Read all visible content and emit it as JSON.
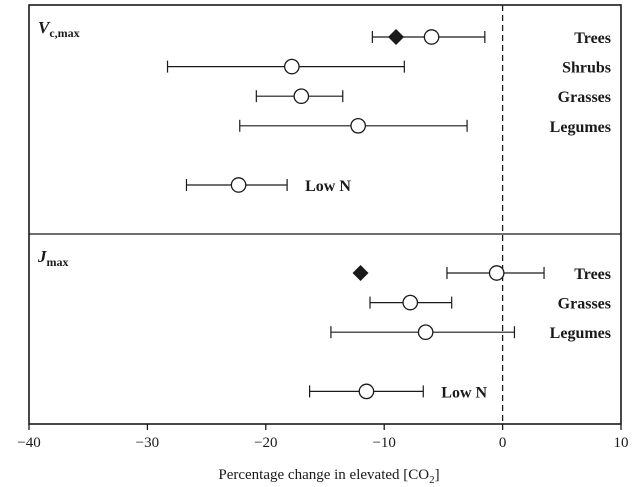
{
  "chart_data": {
    "type": "scatter",
    "subtype": "forest-plot",
    "xlabel": "Percentage change in elevated [CO",
    "xlabel_sub": "2",
    "xlabel_end": "]",
    "xlim": [
      -40,
      10
    ],
    "xticks": [
      -40,
      -30,
      -20,
      -10,
      0,
      10
    ],
    "xtick_labels": [
      "−40",
      "−30",
      "−20",
      "−10",
      "0",
      "10"
    ],
    "reference_line": 0,
    "panels": [
      {
        "label_main": "V",
        "label_sub": "c,max",
        "rows": [
          {
            "category": "Trees",
            "mean": -6,
            "lo": -11,
            "hi": -1.5,
            "diamond": -9
          },
          {
            "category": "Shrubs",
            "mean": -17.8,
            "lo": -28.3,
            "hi": -8.3
          },
          {
            "category": "Grasses",
            "mean": -17,
            "lo": -20.8,
            "hi": -13.5
          },
          {
            "category": "Legumes",
            "mean": -12.2,
            "lo": -22.2,
            "hi": -3
          },
          {
            "category": "Low N",
            "mean": -22.3,
            "lo": -26.7,
            "hi": -18.2,
            "label_side": "right-of-bar"
          }
        ]
      },
      {
        "label_main": "J",
        "label_sub": "max",
        "rows": [
          {
            "category": "Trees",
            "mean": -0.5,
            "lo": -4.7,
            "hi": 3.5,
            "diamond": -12
          },
          {
            "category": "Grasses",
            "mean": -7.8,
            "lo": -11.2,
            "hi": -4.3
          },
          {
            "category": "Legumes",
            "mean": -6.5,
            "lo": -14.5,
            "hi": 1
          },
          {
            "category": "Low N",
            "mean": -11.5,
            "lo": -16.3,
            "hi": -6.7,
            "label_side": "right-of-bar"
          }
        ]
      }
    ]
  }
}
